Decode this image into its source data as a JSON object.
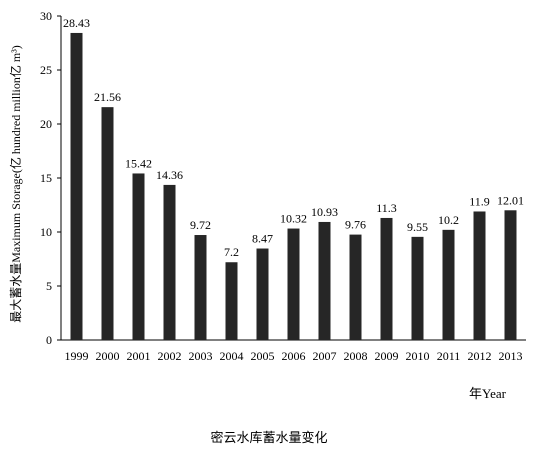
{
  "caption": "密云水库蓄水量变化",
  "chart_data": {
    "type": "bar",
    "categories": [
      "1999",
      "2000",
      "2001",
      "2002",
      "2003",
      "2004",
      "2005",
      "2006",
      "2007",
      "2008",
      "2009",
      "2010",
      "2011",
      "2012",
      "2013"
    ],
    "values": [
      28.43,
      21.56,
      15.42,
      14.36,
      9.72,
      7.2,
      8.47,
      10.32,
      10.93,
      9.76,
      11.3,
      9.55,
      10.2,
      11.9,
      12.01
    ],
    "value_labels": [
      "28.43",
      "21.56",
      "15.42",
      "14.36",
      "9.72",
      "7.2",
      "8.47",
      "10.32",
      "10.93",
      "9.76",
      "11.3",
      "9.55",
      "10.2",
      "11.9",
      "12.01"
    ],
    "xlabel": "年Year",
    "ylabel": "最大蓄水量Maximum Storage(亿 hundred million亿 m³)",
    "ylim": [
      0,
      30
    ],
    "yticks": [
      "0",
      "5",
      "10",
      "15",
      "20",
      "25",
      "30"
    ],
    "grid": false,
    "bar_color": "#262626"
  }
}
